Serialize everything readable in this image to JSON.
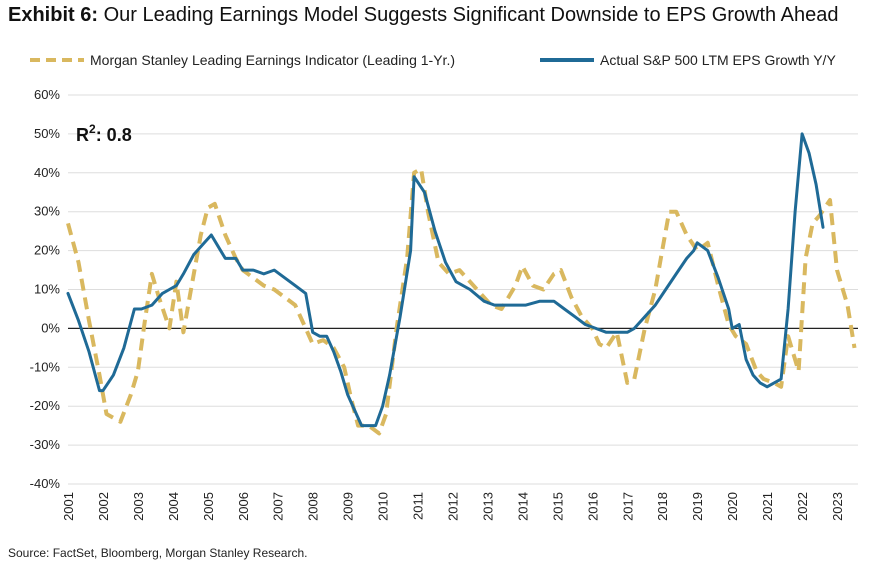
{
  "title": {
    "label": "Exhibit 6:",
    "text": "Our Leading Earnings Model Suggests Significant Downside to EPS Growth Ahead"
  },
  "source": "Source: FactSet, Bloomberg, Morgan Stanley Research.",
  "annotation": {
    "r_label": "R",
    "r_sup": "2",
    "r_value": ": 0.8"
  },
  "colors": {
    "leading": "#D9B85F",
    "actual": "#1F6A96",
    "grid": "#dddddd",
    "zero": "#222222"
  },
  "chart_data": {
    "type": "line",
    "title": "Our Leading Earnings Model Suggests Significant Downside to EPS Growth Ahead",
    "xlim": [
      2001,
      2023.6
    ],
    "ylim": [
      -40,
      60
    ],
    "y_ticks": [
      60,
      50,
      40,
      30,
      20,
      10,
      0,
      -10,
      -20,
      -30,
      -40
    ],
    "y_tick_labels": [
      "60%",
      "50%",
      "40%",
      "30%",
      "20%",
      "10%",
      "0%",
      "-10%",
      "-20%",
      "-30%",
      "-40%"
    ],
    "x_ticks": [
      2001,
      2002,
      2003,
      2004,
      2005,
      2006,
      2007,
      2008,
      2009,
      2010,
      2011,
      2012,
      2013,
      2014,
      2015,
      2016,
      2017,
      2018,
      2019,
      2020,
      2021,
      2022,
      2023
    ],
    "x_tick_labels": [
      "2001",
      "2002",
      "2003",
      "2004",
      "2005",
      "2006",
      "2007",
      "2008",
      "2009",
      "2010",
      "2011",
      "2012",
      "2013",
      "2014",
      "2015",
      "2016",
      "2017",
      "2018",
      "2019",
      "2020",
      "2021",
      "2022",
      "2023"
    ],
    "grid": true,
    "legend_position": "top",
    "series": [
      {
        "name": "Morgan Stanley Leading Earnings Indicator (Leading 1-Yr.)",
        "style": "dashed",
        "color": "#D9B85F",
        "x": [
          2001.0,
          2001.3,
          2001.6,
          2001.9,
          2002.1,
          2002.5,
          2002.8,
          2003.0,
          2003.2,
          2003.4,
          2003.6,
          2003.9,
          2004.1,
          2004.3,
          2004.5,
          2004.8,
          2005.0,
          2005.2,
          2005.5,
          2005.8,
          2006.0,
          2006.3,
          2006.6,
          2006.9,
          2007.2,
          2007.5,
          2007.8,
          2008.0,
          2008.3,
          2008.6,
          2008.9,
          2009.1,
          2009.3,
          2009.6,
          2009.9,
          2010.1,
          2010.4,
          2010.7,
          2010.9,
          2011.1,
          2011.3,
          2011.6,
          2011.9,
          2012.2,
          2012.5,
          2012.8,
          2013.1,
          2013.4,
          2013.8,
          2014.0,
          2014.3,
          2014.6,
          2014.9,
          2015.1,
          2015.4,
          2015.7,
          2016.0,
          2016.2,
          2016.4,
          2016.7,
          2017.0,
          2017.2,
          2017.5,
          2017.8,
          2018.0,
          2018.2,
          2018.4,
          2018.7,
          2019.0,
          2019.3,
          2019.6,
          2019.9,
          2020.1,
          2020.4,
          2020.7,
          2020.9,
          2021.2,
          2021.4,
          2021.6,
          2021.9,
          2022.1,
          2022.3,
          2022.5,
          2022.8,
          2023.0,
          2023.3,
          2023.5
        ],
        "y": [
          27,
          17,
          2,
          -12,
          -22,
          -24,
          -17,
          -11,
          2,
          14,
          8,
          0,
          12,
          -1,
          9,
          24,
          31,
          32,
          24,
          18,
          15,
          13,
          11,
          10,
          8,
          6,
          0,
          -4,
          -3,
          -5,
          -10,
          -18,
          -25,
          -25,
          -27,
          -22,
          0,
          18,
          40,
          41,
          30,
          17,
          14,
          15,
          12,
          9,
          6,
          5,
          11,
          16,
          11,
          10,
          14,
          15,
          8,
          3,
          0,
          -4,
          -5,
          -1,
          -14,
          -13,
          0,
          10,
          20,
          30,
          30,
          24,
          20,
          22,
          11,
          1,
          -2,
          -4,
          -11,
          -13,
          -14,
          -15,
          -2,
          -11,
          18,
          27,
          29,
          33,
          15,
          6,
          -5
        ]
      },
      {
        "name": "Actual S&P 500 LTM EPS Growth Y/Y",
        "style": "solid",
        "color": "#1F6A96",
        "x": [
          2001.0,
          2001.3,
          2001.6,
          2001.9,
          2002.0,
          2002.3,
          2002.6,
          2002.9,
          2003.1,
          2003.4,
          2003.7,
          2003.9,
          2004.1,
          2004.3,
          2004.6,
          2004.9,
          2005.1,
          2005.3,
          2005.5,
          2005.8,
          2006.0,
          2006.3,
          2006.6,
          2006.9,
          2007.2,
          2007.5,
          2007.8,
          2008.0,
          2008.2,
          2008.4,
          2008.6,
          2008.8,
          2009.0,
          2009.2,
          2009.4,
          2009.6,
          2009.8,
          2010.0,
          2010.2,
          2010.5,
          2010.8,
          2010.9,
          2011.2,
          2011.5,
          2011.8,
          2012.1,
          2012.5,
          2012.9,
          2013.2,
          2013.5,
          2013.8,
          2014.1,
          2014.5,
          2014.9,
          2015.2,
          2015.5,
          2015.8,
          2016.1,
          2016.4,
          2016.7,
          2017.0,
          2017.2,
          2017.5,
          2017.8,
          2018.1,
          2018.4,
          2018.7,
          2018.9,
          2019.0,
          2019.3,
          2019.6,
          2019.9,
          2020.0,
          2020.2,
          2020.4,
          2020.6,
          2020.8,
          2021.0,
          2021.2,
          2021.4,
          2021.6,
          2021.8,
          2022.0,
          2022.2,
          2022.4,
          2022.6
        ],
        "y": [
          9,
          2,
          -6,
          -16,
          -16,
          -12,
          -5,
          5,
          5,
          6,
          9,
          10,
          11,
          14,
          19,
          22,
          24,
          21,
          18,
          18,
          15,
          15,
          14,
          15,
          13,
          11,
          9,
          -1,
          -2,
          -2,
          -6,
          -11,
          -17,
          -21,
          -25,
          -25,
          -25,
          -20,
          -12,
          3,
          20,
          39,
          35,
          25,
          17,
          12,
          10,
          7,
          6,
          6,
          6,
          6,
          7,
          7,
          5,
          3,
          1,
          0,
          -1,
          -1,
          -1,
          0,
          3,
          6,
          10,
          14,
          18,
          20,
          22,
          20,
          13,
          5,
          0,
          1,
          -8,
          -12,
          -14,
          -15,
          -14,
          -13,
          5,
          30,
          50,
          45,
          37,
          26
        ]
      }
    ]
  }
}
